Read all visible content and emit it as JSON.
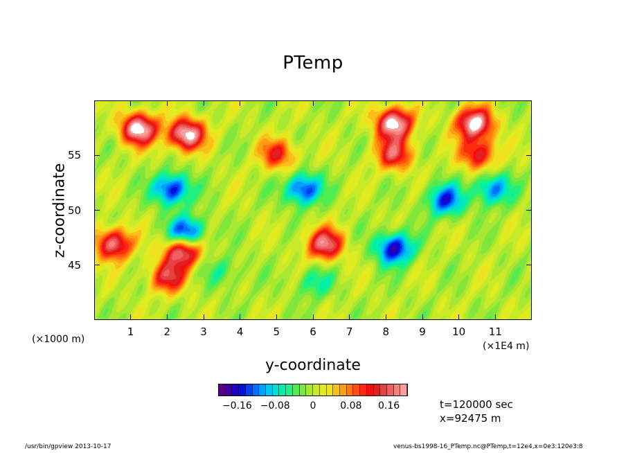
{
  "chart_data": {
    "type": "heatmap",
    "title": "PTemp",
    "xlabel": "y-coordinate",
    "ylabel": "z-coordinate",
    "x_unit_left": "(×1000 m)",
    "x_unit_right": "(×1E4 m)",
    "xlim": [
      0,
      12
    ],
    "ylim": [
      40,
      60
    ],
    "x_ticks": [
      "1",
      "2",
      "3",
      "4",
      "5",
      "6",
      "7",
      "8",
      "9",
      "10",
      "11"
    ],
    "y_ticks": [
      "45",
      "50",
      "55"
    ],
    "x_tick_values": [
      1,
      2,
      3,
      4,
      5,
      6,
      7,
      8,
      9,
      10,
      11
    ],
    "y_tick_values": [
      45,
      50,
      55
    ],
    "colorbar": {
      "range": [
        -0.2,
        0.2
      ],
      "tick_labels": [
        "−0.16",
        "−0.08",
        "0",
        "0.08",
        "0.16"
      ],
      "tick_values": [
        -0.16,
        -0.08,
        0,
        0.08,
        0.16
      ],
      "colors": [
        "#5a007f",
        "#3a00a0",
        "#1e00c8",
        "#0010e0",
        "#0040f0",
        "#0070ff",
        "#00a0ff",
        "#00c8f0",
        "#00e0d0",
        "#00f0a8",
        "#20f080",
        "#50ec50",
        "#80e63c",
        "#a8e830",
        "#c8ea28",
        "#e0ec20",
        "#f0e020",
        "#f8c018",
        "#ff9c10",
        "#ff7810",
        "#ff5010",
        "#ff2810",
        "#f01010",
        "#e02020",
        "#e84040",
        "#f06060",
        "#f48080",
        "#f8a0a0"
      ]
    },
    "features": [
      {
        "y": 1.2,
        "z": 57.5,
        "value": 0.22
      },
      {
        "y": 2.5,
        "z": 57.0,
        "value": 0.22
      },
      {
        "y": 8.2,
        "z": 58.0,
        "value": 0.22
      },
      {
        "y": 10.4,
        "z": 58.0,
        "value": 0.22
      },
      {
        "y": 2.1,
        "z": 52.0,
        "value": -0.16
      },
      {
        "y": 2.5,
        "z": 48.0,
        "value": -0.17
      },
      {
        "y": 5.7,
        "z": 52.0,
        "value": -0.15
      },
      {
        "y": 9.6,
        "z": 51.0,
        "value": -0.14
      },
      {
        "y": 10.9,
        "z": 52.0,
        "value": -0.12
      },
      {
        "y": 8.2,
        "z": 46.6,
        "value": -0.17
      },
      {
        "y": 2.4,
        "z": 46.4,
        "value": 0.2
      },
      {
        "y": 0.5,
        "z": 47.0,
        "value": 0.18
      },
      {
        "y": 6.3,
        "z": 47.0,
        "value": 0.18
      },
      {
        "y": 8.2,
        "z": 55.2,
        "value": 0.15
      },
      {
        "y": 10.5,
        "z": 55.2,
        "value": 0.14
      },
      {
        "y": 5.0,
        "z": 55.2,
        "value": 0.12
      },
      {
        "y": 2.0,
        "z": 44.0,
        "value": 0.14
      },
      {
        "y": 6.0,
        "z": 43.5,
        "value": -0.06
      },
      {
        "y": 3.5,
        "z": 44.5,
        "value": -0.05
      }
    ]
  },
  "annotations": {
    "time": "t=120000 sec",
    "xpos": "x=92475 m"
  },
  "footer": {
    "left": "/usr/bin/gpview   2013-10-17",
    "right": "venus-bs1998-16_PTemp.nc@PTemp,t=12e4,x=0e3:120e3:8"
  }
}
